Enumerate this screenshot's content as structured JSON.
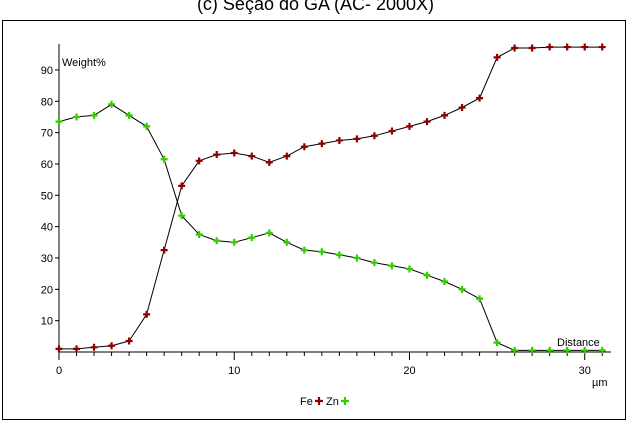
{
  "chart_data": {
    "type": "line",
    "title": "(c) Seção do GA (AC- 2000X)",
    "ylabel": "Weight%",
    "xlabel": "Distance",
    "x_unit": "µm",
    "xlim": [
      0,
      31.5
    ],
    "ylim": [
      0,
      97
    ],
    "x_ticks": [
      0,
      10,
      20,
      30
    ],
    "y_ticks": [
      10,
      20,
      30,
      40,
      50,
      60,
      70,
      80,
      90
    ],
    "legend": "bottom-center",
    "x": [
      0,
      1,
      2,
      3,
      4,
      5,
      6,
      7,
      8,
      9,
      10,
      11,
      12,
      13,
      14,
      15,
      16,
      17,
      18,
      19,
      20,
      21,
      22,
      23,
      24,
      25,
      26,
      27,
      28,
      29,
      30,
      31
    ],
    "series": [
      {
        "name": "Fe",
        "color": "#8b0000",
        "values": [
          1,
          1,
          1.5,
          2,
          3.5,
          12,
          32.5,
          53,
          61,
          63,
          63.5,
          62.5,
          60.5,
          62.5,
          65.5,
          66.5,
          67.5,
          68,
          69,
          70.5,
          72,
          73.5,
          75.5,
          78,
          81,
          94,
          97,
          97,
          97.3,
          97.3,
          97.3,
          97.3
        ]
      },
      {
        "name": "Zn",
        "color": "#33cc00",
        "values": [
          73.5,
          75,
          75.5,
          79,
          75.5,
          72,
          61.5,
          43.5,
          37.5,
          35.5,
          35,
          36.5,
          38,
          35,
          32.5,
          32,
          31,
          30,
          28.5,
          27.5,
          26.5,
          24.5,
          22.5,
          20,
          17,
          3,
          0.5,
          0.5,
          0.5,
          0.5,
          0.5,
          0.5
        ]
      }
    ]
  }
}
